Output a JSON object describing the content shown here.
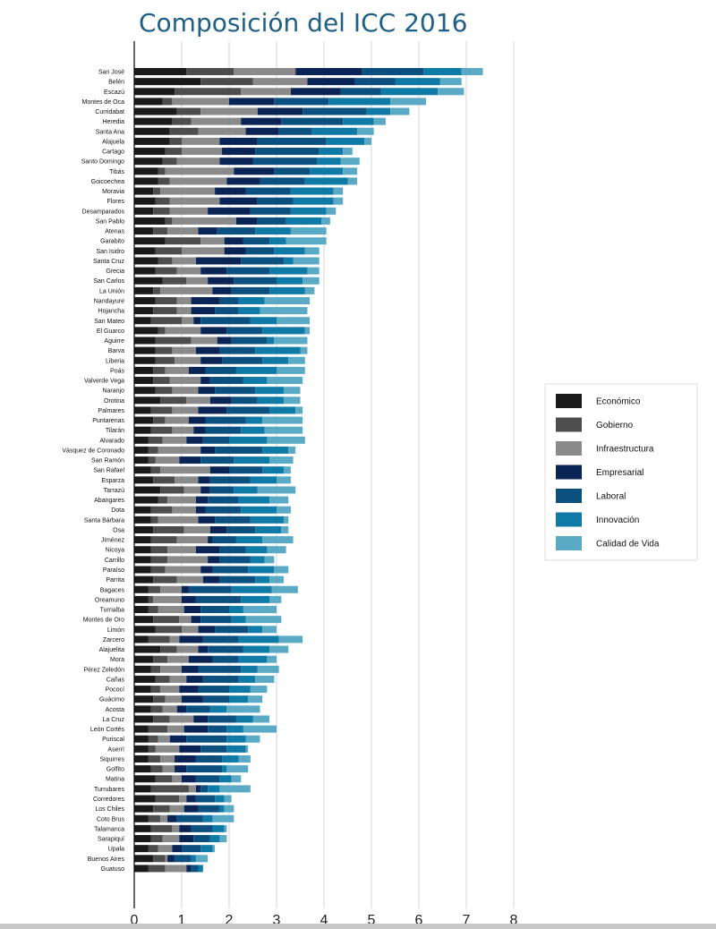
{
  "chart_data": {
    "type": "bar",
    "orientation": "horizontal",
    "stacked": true,
    "title": "Composición del ICC 2016",
    "xlabel": "",
    "ylabel": "",
    "xlim": [
      0,
      8
    ],
    "xticks": [
      "0",
      "1",
      "2",
      "3",
      "4",
      "5",
      "6",
      "7",
      "8"
    ],
    "grid": true,
    "legend_position": "right",
    "series_names": [
      "Económico",
      "Gobierno",
      "Infraestructura",
      "Empresarial",
      "Laboral",
      "Innovación",
      "Calidad de Vida"
    ],
    "colors": [
      "#1a1a1a",
      "#4d4d4d",
      "#8a8a8a",
      "#0b2456",
      "#0c5080",
      "#0f7aa6",
      "#5aaac5"
    ],
    "categories": [
      "San José",
      "Belén",
      "Escazú",
      "Montes de Oca",
      "Curridabat",
      "Heredia",
      "Santa Ana",
      "Alajuela",
      "Cartago",
      "Santo Domingo",
      "Tibás",
      "Goicoechea",
      "Moravia",
      "Flores",
      "Desamparados",
      "San Pablo",
      "Atenas",
      "Garabito",
      "San Isidro",
      "Santa Cruz",
      "Grecia",
      "San Carlos",
      "La Unión",
      "Nandayure",
      "Hojancha",
      "San Mateo",
      "El Guarco",
      "Aguirre",
      "Barva",
      "Liberia",
      "Poás",
      "Valverde Vega",
      "Naranjo",
      "Orotina",
      "Palmares",
      "Puntarenas",
      "Tilarán",
      "Alvarado",
      "Vásquez de Coronado",
      "San Ramón",
      "San Rafael",
      "Esparza",
      "Tarrazú",
      "Abangares",
      "Dota",
      "Santa Bárbara",
      "Osa",
      "Jiménez",
      "Nicoya",
      "Carrillo",
      "Paraíso",
      "Parrita",
      "Bagaces",
      "Oreamuno",
      "Turrialba",
      "Montes de Oro",
      "Limón",
      "Zarcero",
      "Alajuelita",
      "Mora",
      "Pérez Zeledón",
      "Cañas",
      "Pococí",
      "Guácimo",
      "Acosta",
      "La Cruz",
      "León Cortés",
      "Puriscal",
      "Aserrí",
      "Siquirres",
      "Golfito",
      "Matina",
      "Turrubares",
      "Corredores",
      "Los Chiles",
      "Coto Brus",
      "Talamanca",
      "Sarapiquí",
      "Upala",
      "Buenos Aires",
      "Guatuso"
    ],
    "values": [
      [
        1.1,
        1.0,
        1.3,
        1.4,
        1.3,
        0.8,
        0.45
      ],
      [
        1.4,
        1.1,
        1.15,
        1.0,
        0.85,
        0.95,
        0.45
      ],
      [
        0.85,
        1.4,
        1.05,
        1.05,
        0.85,
        1.2,
        0.55
      ],
      [
        0.6,
        0.2,
        1.2,
        0.95,
        1.15,
        1.3,
        0.75
      ],
      [
        0.9,
        0.5,
        1.2,
        0.95,
        1.35,
        0.5,
        0.4
      ],
      [
        0.8,
        0.4,
        1.05,
        0.85,
        1.3,
        0.65,
        0.25
      ],
      [
        0.75,
        0.6,
        1.0,
        0.7,
        0.7,
        0.95,
        0.35
      ],
      [
        0.75,
        0.25,
        0.8,
        0.8,
        1.45,
        0.8,
        0.15
      ],
      [
        0.65,
        0.35,
        0.85,
        0.7,
        1.35,
        0.5,
        0.2
      ],
      [
        0.6,
        0.3,
        0.9,
        0.7,
        1.35,
        0.5,
        0.4
      ],
      [
        0.5,
        0.15,
        1.45,
        0.85,
        0.75,
        0.7,
        0.3
      ],
      [
        0.5,
        0.25,
        1.2,
        0.7,
        0.95,
        0.9,
        0.2
      ],
      [
        0.4,
        0.15,
        1.15,
        0.65,
        0.95,
        0.9,
        0.2
      ],
      [
        0.45,
        0.3,
        1.05,
        0.8,
        0.75,
        0.85,
        0.2
      ],
      [
        0.4,
        0.35,
        0.8,
        0.9,
        0.85,
        0.75,
        0.2
      ],
      [
        0.65,
        0.15,
        1.35,
        0.45,
        0.6,
        0.75,
        0.18
      ],
      [
        0.4,
        0.3,
        0.65,
        0.4,
        0.8,
        0.75,
        0.75
      ],
      [
        0.65,
        0.75,
        0.5,
        0.4,
        0.55,
        0.35,
        0.85
      ],
      [
        0.45,
        0.55,
        0.9,
        0.45,
        0.6,
        0.65,
        0.3
      ],
      [
        0.5,
        0.3,
        0.5,
        0.95,
        0.9,
        0.2,
        0.55
      ],
      [
        0.45,
        0.45,
        0.5,
        0.55,
        0.9,
        0.8,
        0.25
      ],
      [
        0.6,
        0.5,
        0.45,
        0.55,
        0.9,
        0.55,
        0.35
      ],
      [
        0.4,
        0.15,
        1.1,
        0.4,
        0.8,
        0.75,
        0.2
      ],
      [
        0.45,
        0.45,
        0.3,
        0.6,
        0.4,
        0.55,
        0.95
      ],
      [
        0.4,
        0.5,
        0.3,
        0.5,
        0.5,
        0.45,
        1.0
      ],
      [
        0.35,
        0.65,
        0.25,
        0.15,
        1.05,
        0.55,
        0.7
      ],
      [
        0.5,
        0.15,
        0.75,
        0.55,
        0.75,
        0.9,
        0.1
      ],
      [
        0.45,
        0.75,
        0.55,
        0.3,
        0.75,
        0.15,
        0.7
      ],
      [
        0.45,
        0.35,
        0.5,
        0.5,
        0.75,
        0.95,
        0.15
      ],
      [
        0.45,
        0.4,
        0.55,
        0.45,
        0.85,
        0.55,
        0.35
      ],
      [
        0.4,
        0.25,
        0.5,
        0.35,
        0.65,
        0.85,
        0.6
      ],
      [
        0.4,
        0.35,
        0.65,
        0.2,
        0.7,
        0.5,
        0.75
      ],
      [
        0.45,
        0.35,
        0.55,
        0.35,
        0.85,
        0.6,
        0.35
      ],
      [
        0.55,
        0.55,
        0.5,
        0.45,
        0.55,
        0.55,
        0.35
      ],
      [
        0.35,
        0.45,
        0.55,
        0.6,
        0.9,
        0.55,
        0.15
      ],
      [
        0.4,
        0.25,
        0.5,
        0.35,
        0.85,
        0.35,
        0.85
      ],
      [
        0.35,
        0.45,
        0.45,
        0.25,
        0.75,
        0.5,
        0.8
      ],
      [
        0.3,
        0.3,
        0.5,
        0.35,
        0.55,
        0.8,
        0.8
      ],
      [
        0.3,
        0.2,
        0.9,
        0.3,
        1.0,
        0.55,
        0.15
      ],
      [
        0.3,
        0.15,
        0.5,
        0.45,
        0.7,
        0.75,
        0.5
      ],
      [
        0.35,
        0.2,
        1.05,
        0.4,
        0.7,
        0.45,
        0.15
      ],
      [
        0.4,
        0.45,
        0.5,
        0.25,
        0.85,
        0.55,
        0.3
      ],
      [
        0.55,
        0.5,
        0.35,
        0.2,
        0.5,
        0.5,
        0.8
      ],
      [
        0.5,
        0.2,
        0.6,
        0.25,
        0.65,
        0.65,
        0.4
      ],
      [
        0.35,
        0.45,
        0.5,
        0.2,
        0.75,
        0.75,
        0.3
      ],
      [
        0.35,
        0.15,
        0.85,
        0.35,
        0.75,
        0.7,
        0.1
      ],
      [
        0.4,
        0.65,
        0.55,
        0.35,
        0.6,
        0.55,
        0.15
      ],
      [
        0.35,
        0.55,
        0.65,
        0.1,
        0.5,
        0.55,
        0.65
      ],
      [
        0.35,
        0.35,
        0.6,
        0.5,
        0.55,
        0.45,
        0.4
      ],
      [
        0.35,
        0.35,
        0.85,
        0.25,
        0.65,
        0.3,
        0.2
      ],
      [
        0.35,
        0.3,
        0.75,
        0.25,
        0.75,
        0.55,
        0.3
      ],
      [
        0.4,
        0.5,
        0.55,
        0.35,
        0.75,
        0.3,
        0.3
      ],
      [
        0.3,
        0.25,
        0.45,
        0.15,
        0.9,
        0.85,
        0.55
      ],
      [
        0.3,
        0.1,
        0.6,
        0.3,
        0.95,
        0.6,
        0.25
      ],
      [
        0.3,
        0.2,
        0.55,
        0.35,
        0.6,
        0.3,
        0.7
      ],
      [
        0.4,
        0.55,
        0.25,
        0.2,
        0.65,
        0.3,
        0.75
      ],
      [
        0.45,
        0.55,
        0.35,
        0.35,
        0.7,
        0.3,
        0.3
      ],
      [
        0.3,
        0.45,
        0.2,
        0.5,
        0.75,
        0.85,
        0.5
      ],
      [
        0.55,
        0.35,
        0.45,
        0.2,
        0.75,
        0.55,
        0.4
      ],
      [
        0.4,
        0.3,
        0.45,
        0.5,
        0.55,
        0.6,
        0.2
      ],
      [
        0.35,
        0.2,
        0.45,
        0.35,
        0.9,
        0.35,
        0.45
      ],
      [
        0.45,
        0.3,
        0.35,
        0.35,
        0.75,
        0.35,
        0.4
      ],
      [
        0.35,
        0.2,
        0.4,
        0.4,
        0.65,
        0.45,
        0.35
      ],
      [
        0.4,
        0.25,
        0.35,
        0.45,
        0.55,
        0.4,
        0.3
      ],
      [
        0.35,
        0.25,
        0.3,
        0.2,
        0.5,
        0.35,
        0.7
      ],
      [
        0.4,
        0.35,
        0.5,
        0.3,
        0.6,
        0.35,
        0.35
      ],
      [
        0.3,
        0.4,
        0.35,
        0.5,
        0.4,
        0.35,
        0.7
      ],
      [
        0.3,
        0.2,
        0.25,
        0.35,
        0.85,
        0.4,
        0.3
      ],
      [
        0.3,
        0.15,
        0.5,
        0.45,
        0.55,
        0.4,
        0.05
      ],
      [
        0.3,
        0.25,
        0.3,
        0.45,
        0.55,
        0.35,
        0.25
      ],
      [
        0.35,
        0.25,
        0.25,
        0.25,
        0.75,
        0.1,
        0.45
      ],
      [
        0.45,
        0.35,
        0.2,
        0.3,
        0.5,
        0.25,
        0.2
      ],
      [
        0.35,
        0.8,
        0.15,
        0.1,
        0.15,
        0.25,
        0.65
      ],
      [
        0.45,
        0.5,
        0.15,
        0.2,
        0.4,
        0.2,
        0.15
      ],
      [
        0.4,
        0.35,
        0.3,
        0.3,
        0.45,
        0.1,
        0.2
      ],
      [
        0.3,
        0.25,
        0.15,
        0.2,
        0.55,
        0.2,
        0.45
      ],
      [
        0.35,
        0.45,
        0.15,
        0.25,
        0.45,
        0.25,
        0.05
      ],
      [
        0.35,
        0.25,
        0.35,
        0.3,
        0.35,
        0.2,
        0.15
      ],
      [
        0.3,
        0.2,
        0.3,
        0.2,
        0.4,
        0.25,
        0.05
      ],
      [
        0.4,
        0.25,
        0.05,
        0.15,
        0.35,
        0.1,
        0.25
      ],
      [
        0.3,
        0.35,
        0.45,
        0.1,
        0.15,
        0.1,
        0.0
      ]
    ]
  }
}
